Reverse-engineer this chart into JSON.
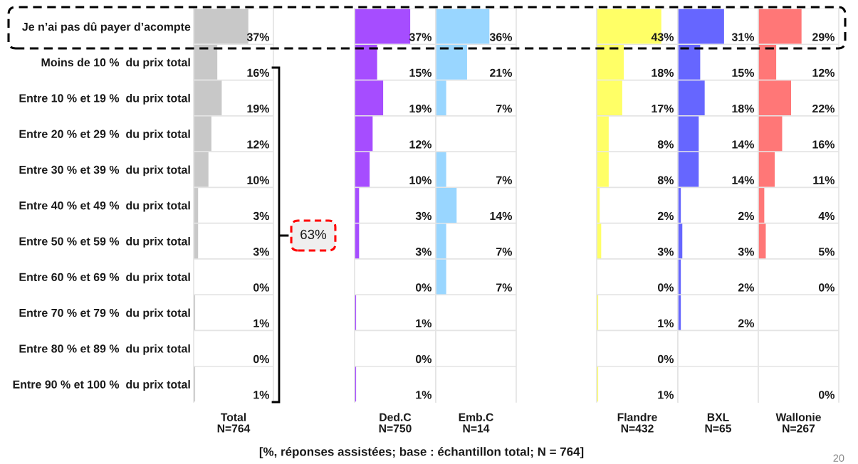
{
  "chart_data": [
    {
      "type": "bar",
      "orientation": "horizontal",
      "categories": [
        "Je n’ai pas dû payer d’acompte",
        "Moins de 10 %  du prix total",
        "Entre 10 % et 19 %  du prix total",
        "Entre 20 % et 29 %  du prix total",
        "Entre 30 % et 39 %  du prix total",
        "Entre 40 % et 49 %  du prix total",
        "Entre 50 % et 59 %  du prix total",
        "Entre 60 % et 69 %  du prix total",
        "Entre 70 % et 79 %  du prix total",
        "Entre 80 % et 89 %  du prix total",
        "Entre 90 % et 100 %  du prix total"
      ],
      "values": [
        37,
        16,
        19,
        12,
        10,
        3,
        3,
        0,
        1,
        0,
        1
      ],
      "value_labels": [
        "37%",
        "16%",
        "19%",
        "12%",
        "10%",
        "3%",
        "3%",
        "0%",
        "1%",
        "0%",
        "1%"
      ],
      "color": "#c8c8c8",
      "xlabel": "Total\nN=764",
      "xlim": [
        0,
        54
      ],
      "tick_labels": "y",
      "grid": "y",
      "annotations": [
        "63%",
        "[%, réponses assistées; base : échantillon total; N = 764]",
        "20"
      ]
    },
    {
      "type": "bar",
      "orientation": "horizontal",
      "categories": [
        null,
        null,
        null,
        null,
        null,
        null,
        null,
        null,
        null,
        null,
        null
      ],
      "values": [
        37,
        15,
        19,
        12,
        10,
        3,
        3,
        0,
        1,
        0,
        1
      ],
      "value_labels": [
        "37%",
        "15%",
        "19%",
        "12%",
        "10%",
        "3%",
        "3%",
        "0%",
        "1%",
        "0%",
        "1%"
      ],
      "color": "#a64dff",
      "xlabel": "Ded.C\nN=750",
      "xlim": [
        0,
        54
      ],
      "tick_labels": false,
      "grid": "y"
    },
    {
      "type": "bar",
      "orientation": "horizontal",
      "categories": [
        null,
        null,
        null,
        null,
        null,
        null,
        null,
        null,
        null,
        null,
        null
      ],
      "values": [
        36,
        21,
        7,
        null,
        7,
        14,
        7,
        7,
        null,
        null,
        null
      ],
      "value_labels": [
        "36%",
        "21%",
        "7%",
        null,
        "7%",
        "14%",
        "7%",
        "7%",
        null,
        null,
        null
      ],
      "color": "#99d6ff",
      "xlabel": "Emb.C\nN=14",
      "xlim": [
        0,
        54
      ],
      "tick_labels": false,
      "grid": "y"
    },
    {
      "type": "bar",
      "orientation": "horizontal",
      "categories": [
        null,
        null,
        null,
        null,
        null,
        null,
        null,
        null,
        null,
        null,
        null
      ],
      "values": [
        43,
        18,
        17,
        8,
        8,
        2,
        3,
        0,
        1,
        0,
        1
      ],
      "value_labels": [
        "43%",
        "18%",
        "17%",
        "8%",
        "8%",
        "2%",
        "3%",
        "0%",
        "1%",
        "0%",
        "1%"
      ],
      "color": "#ffff66",
      "xlabel": "Flandre\nN=432",
      "xlim": [
        0,
        54
      ],
      "tick_labels": false,
      "grid": "y"
    },
    {
      "type": "bar",
      "orientation": "horizontal",
      "categories": [
        null,
        null,
        null,
        null,
        null,
        null,
        null,
        null,
        null,
        null,
        null
      ],
      "values": [
        31,
        15,
        18,
        14,
        14,
        2,
        3,
        2,
        2,
        null,
        null
      ],
      "value_labels": [
        "31%",
        "15%",
        "18%",
        "14%",
        "14%",
        "2%",
        "3%",
        "2%",
        "2%",
        null,
        null
      ],
      "color": "#6666ff",
      "xlabel": "BXL\nN=65",
      "xlim": [
        0,
        54
      ],
      "tick_labels": false,
      "grid": "y"
    },
    {
      "type": "bar",
      "orientation": "horizontal",
      "categories": [
        null,
        null,
        null,
        null,
        null,
        null,
        null,
        null,
        null,
        null,
        null
      ],
      "values": [
        29,
        12,
        22,
        16,
        11,
        4,
        5,
        0,
        null,
        null,
        0
      ],
      "value_labels": [
        "29%",
        "12%",
        "22%",
        "16%",
        "11%",
        "4%",
        "5%",
        "0%",
        null,
        null,
        "0%"
      ],
      "color": "#ff7777",
      "xlabel": "Wallonie\nN=267",
      "xlim": [
        0,
        54
      ],
      "tick_labels": false,
      "grid": "y"
    }
  ]
}
